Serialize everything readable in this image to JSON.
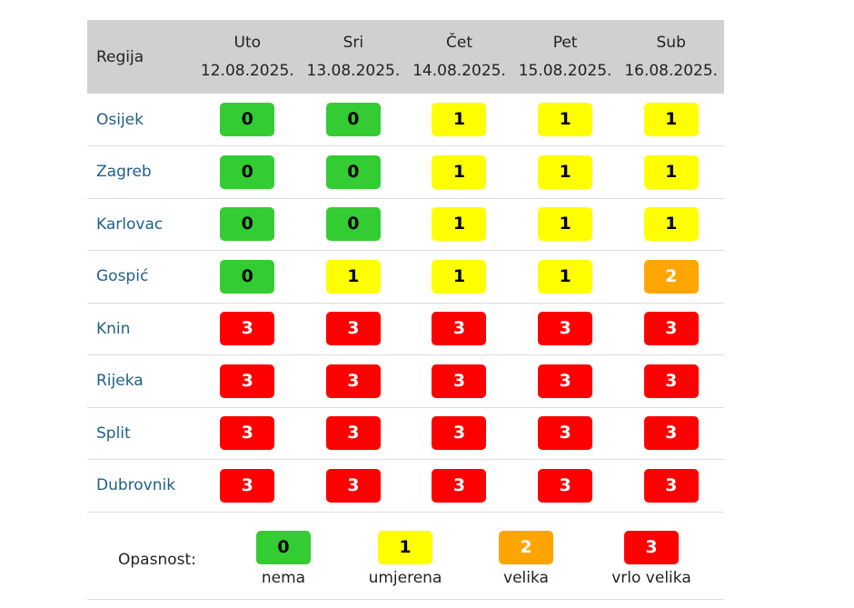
{
  "table": {
    "region_header": "Regija",
    "days": [
      {
        "name": "Uto",
        "date": "12.08.2025."
      },
      {
        "name": "Sri",
        "date": "13.08.2025."
      },
      {
        "name": "Čet",
        "date": "14.08.2025."
      },
      {
        "name": "Pet",
        "date": "15.08.2025."
      },
      {
        "name": "Sub",
        "date": "16.08.2025."
      }
    ],
    "rows": [
      {
        "region": "Osijek",
        "levels": [
          "0",
          "0",
          "1",
          "1",
          "1"
        ]
      },
      {
        "region": "Zagreb",
        "levels": [
          "0",
          "0",
          "1",
          "1",
          "1"
        ]
      },
      {
        "region": "Karlovac",
        "levels": [
          "0",
          "0",
          "1",
          "1",
          "1"
        ]
      },
      {
        "region": "Gospić",
        "levels": [
          "0",
          "1",
          "1",
          "1",
          "2"
        ]
      },
      {
        "region": "Knin",
        "levels": [
          "3",
          "3",
          "3",
          "3",
          "3"
        ]
      },
      {
        "region": "Rijeka",
        "levels": [
          "3",
          "3",
          "3",
          "3",
          "3"
        ]
      },
      {
        "region": "Split",
        "levels": [
          "3",
          "3",
          "3",
          "3",
          "3"
        ]
      },
      {
        "region": "Dubrovnik",
        "levels": [
          "3",
          "3",
          "3",
          "3",
          "3"
        ]
      }
    ]
  },
  "legend": {
    "label": "Opasnost:",
    "items": [
      {
        "level": "0",
        "text": "nema"
      },
      {
        "level": "1",
        "text": "umjerena"
      },
      {
        "level": "2",
        "text": "velika"
      },
      {
        "level": "3",
        "text": "vrlo velika"
      }
    ]
  },
  "colors": {
    "level_0": "#33cc33",
    "level_1": "#ffff00",
    "level_2": "#ffa500",
    "level_3": "#ff0000",
    "header_bg": "#d0d0d0",
    "region_link": "#1f5f8b"
  }
}
